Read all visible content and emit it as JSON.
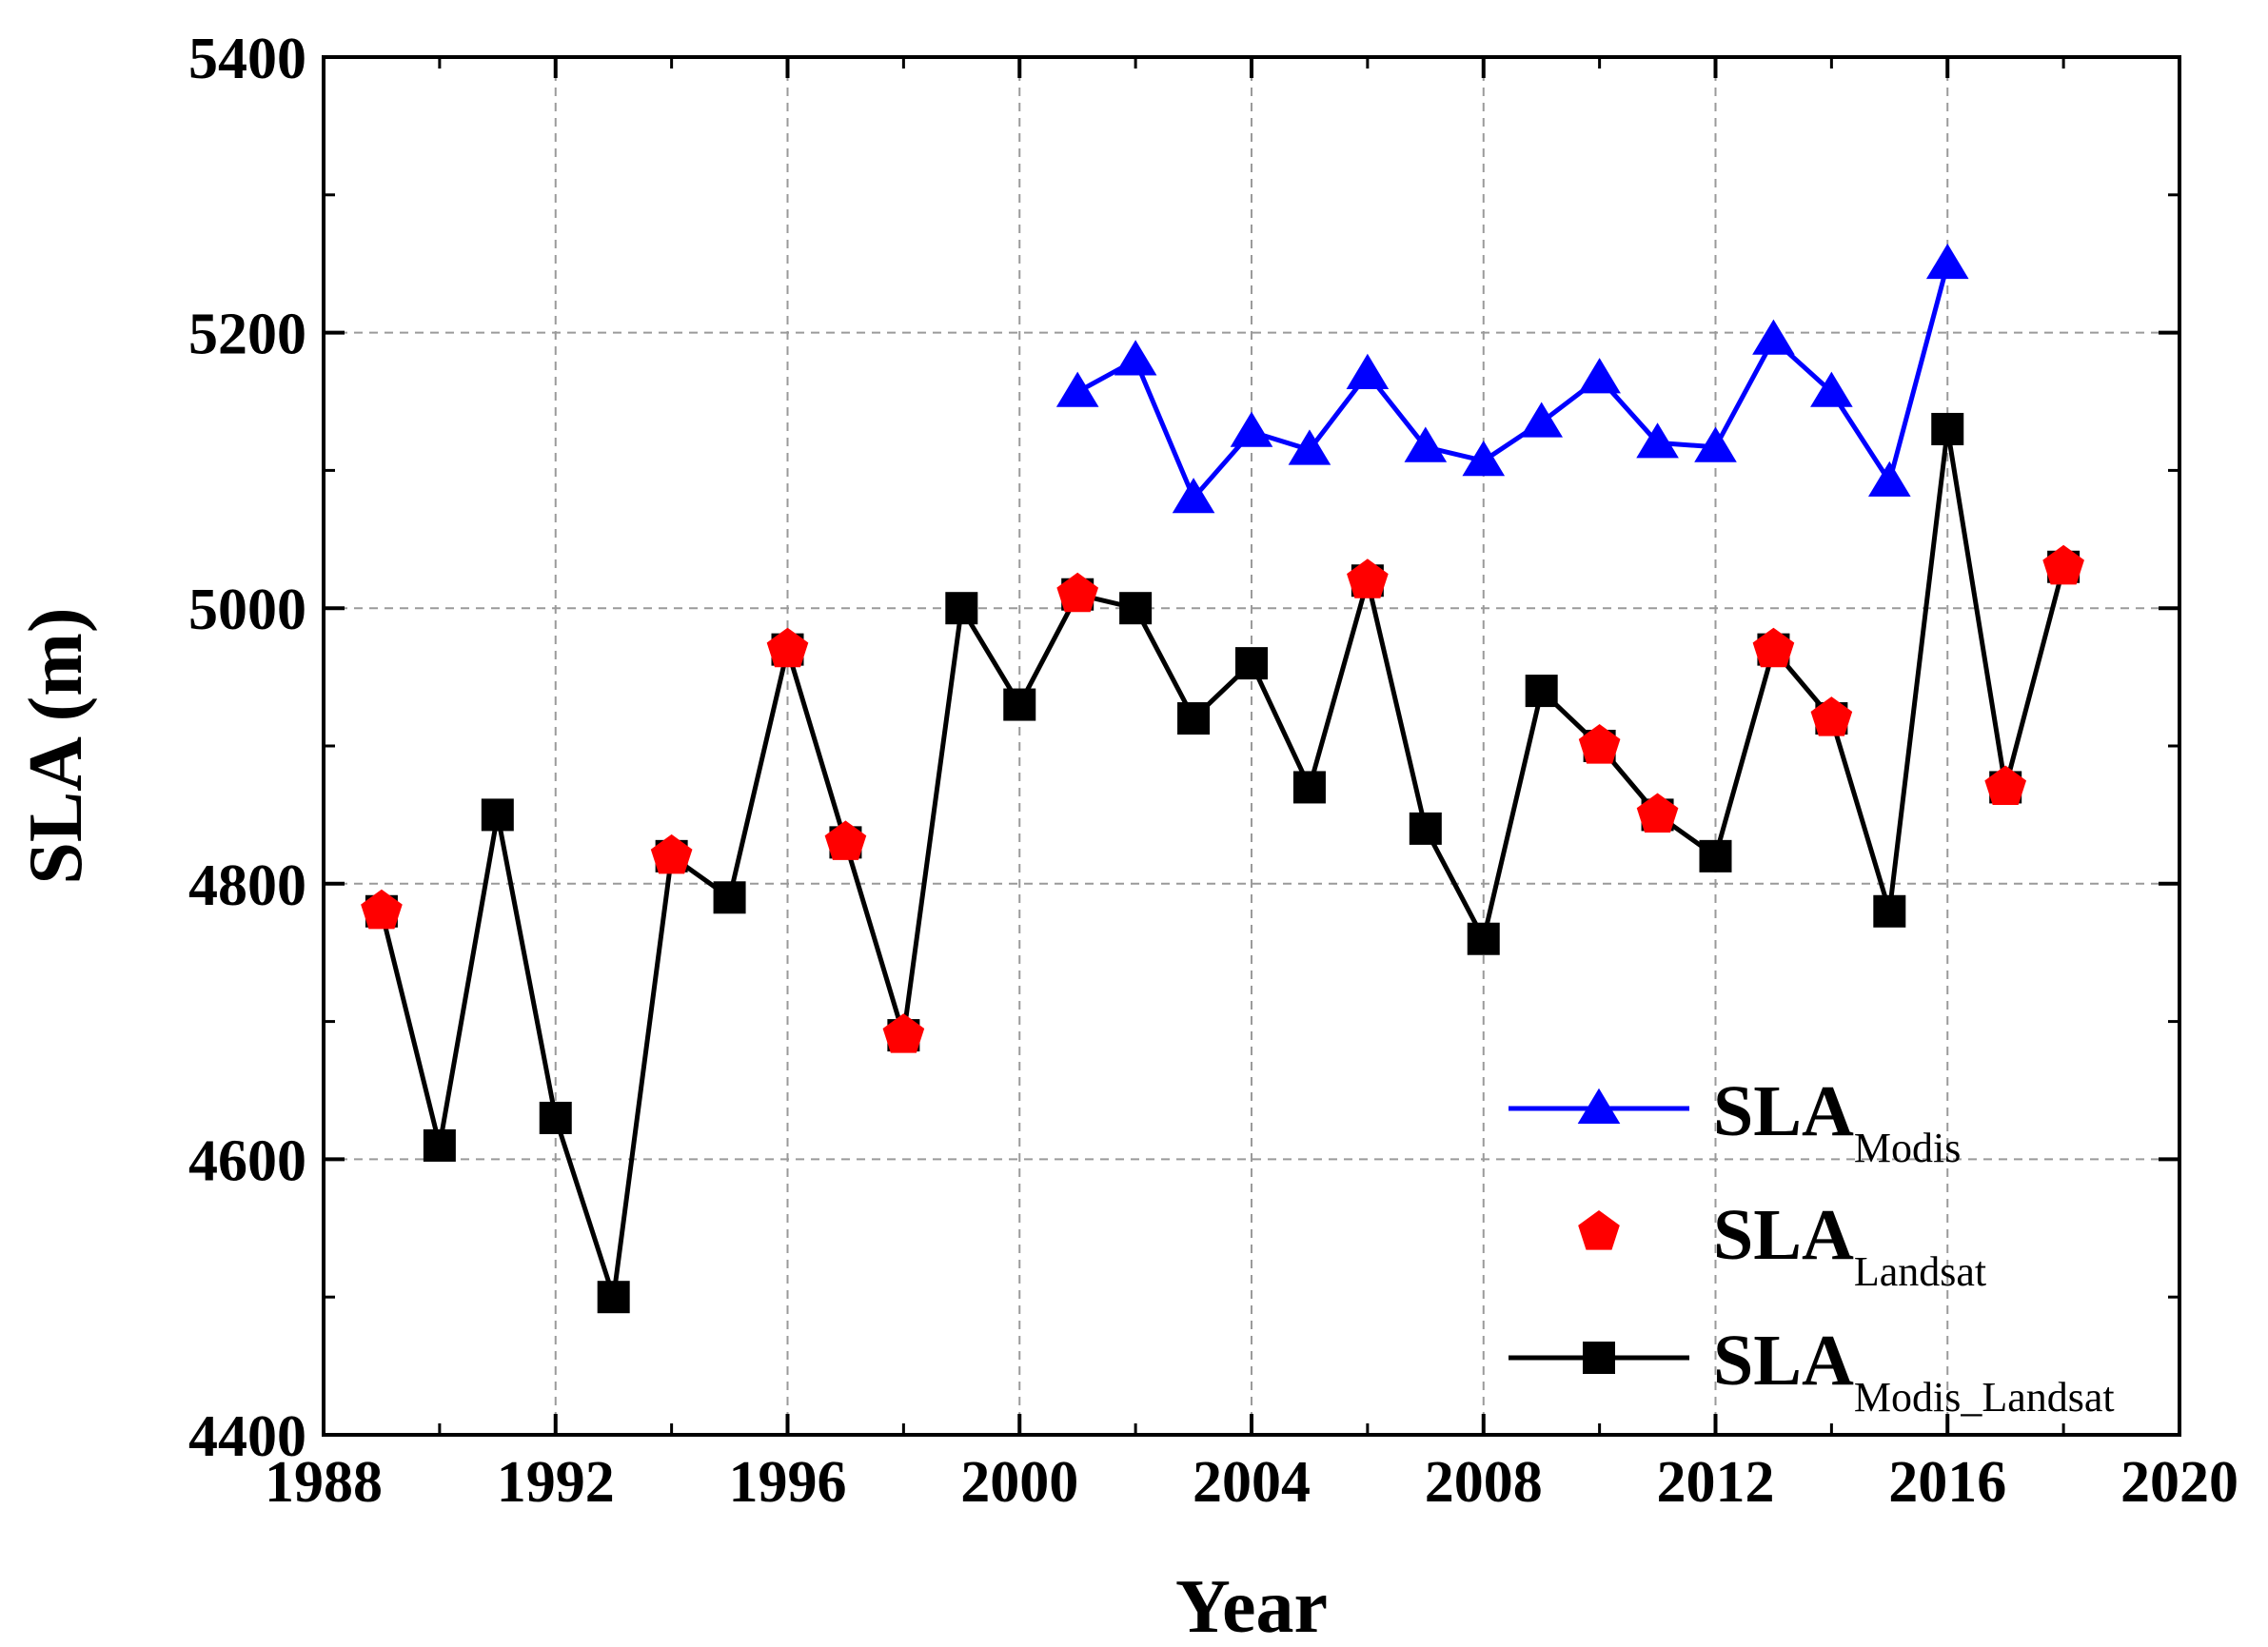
{
  "chart_data": {
    "type": "line",
    "title": "",
    "xlabel": "Year",
    "ylabel": "SLA (m)",
    "xlim": [
      1988,
      2020
    ],
    "ylim": [
      4400,
      5400
    ],
    "xticks": [
      1988,
      1992,
      1996,
      2000,
      2004,
      2008,
      2012,
      2016,
      2020
    ],
    "yticks": [
      4400,
      4600,
      4800,
      5000,
      5200,
      5400
    ],
    "grid": true,
    "legend_position": "bottom-right",
    "series": [
      {
        "key": "modis",
        "name": "SLA",
        "name_sub": "Modis",
        "color": "#0000ff",
        "marker": "triangle",
        "line": true,
        "points": [
          [
            2001,
            5157
          ],
          [
            2002,
            5180
          ],
          [
            2003,
            5080
          ],
          [
            2004,
            5128
          ],
          [
            2005,
            5115
          ],
          [
            2006,
            5170
          ],
          [
            2007,
            5117
          ],
          [
            2008,
            5107
          ],
          [
            2009,
            5135
          ],
          [
            2010,
            5167
          ],
          [
            2011,
            5120
          ],
          [
            2012,
            5117
          ],
          [
            2013,
            5195
          ],
          [
            2014,
            5157
          ],
          [
            2015,
            5092
          ],
          [
            2016,
            5250
          ]
        ]
      },
      {
        "key": "landsat",
        "name": "SLA",
        "name_sub": "Landsat",
        "color": "#ff0000",
        "marker": "pentagon",
        "line": false,
        "points": [
          [
            1989,
            4780
          ],
          [
            1994,
            4820
          ],
          [
            1996,
            4970
          ],
          [
            1997,
            4830
          ],
          [
            1998,
            4690
          ],
          [
            2001,
            5010
          ],
          [
            2006,
            5020
          ],
          [
            2010,
            4900
          ],
          [
            2011,
            4850
          ],
          [
            2013,
            4970
          ],
          [
            2014,
            4920
          ],
          [
            2017,
            4870
          ],
          [
            2018,
            5030
          ]
        ]
      },
      {
        "key": "combined",
        "name": "SLA",
        "name_sub": "Modis_Landsat",
        "color": "#000000",
        "marker": "square",
        "line": true,
        "points": [
          [
            1989,
            4780
          ],
          [
            1990,
            4610
          ],
          [
            1991,
            4850
          ],
          [
            1992,
            4630
          ],
          [
            1993,
            4500
          ],
          [
            1994,
            4820
          ],
          [
            1995,
            4790
          ],
          [
            1996,
            4970
          ],
          [
            1997,
            4830
          ],
          [
            1998,
            4690
          ],
          [
            1999,
            5000
          ],
          [
            2000,
            4930
          ],
          [
            2001,
            5010
          ],
          [
            2002,
            5000
          ],
          [
            2003,
            4920
          ],
          [
            2004,
            4960
          ],
          [
            2005,
            4870
          ],
          [
            2006,
            5020
          ],
          [
            2007,
            4840
          ],
          [
            2008,
            4760
          ],
          [
            2009,
            4940
          ],
          [
            2010,
            4900
          ],
          [
            2011,
            4850
          ],
          [
            2012,
            4820
          ],
          [
            2013,
            4970
          ],
          [
            2014,
            4920
          ],
          [
            2015,
            4780
          ],
          [
            2016,
            5130
          ],
          [
            2017,
            4870
          ],
          [
            2018,
            5030
          ]
        ]
      }
    ]
  }
}
